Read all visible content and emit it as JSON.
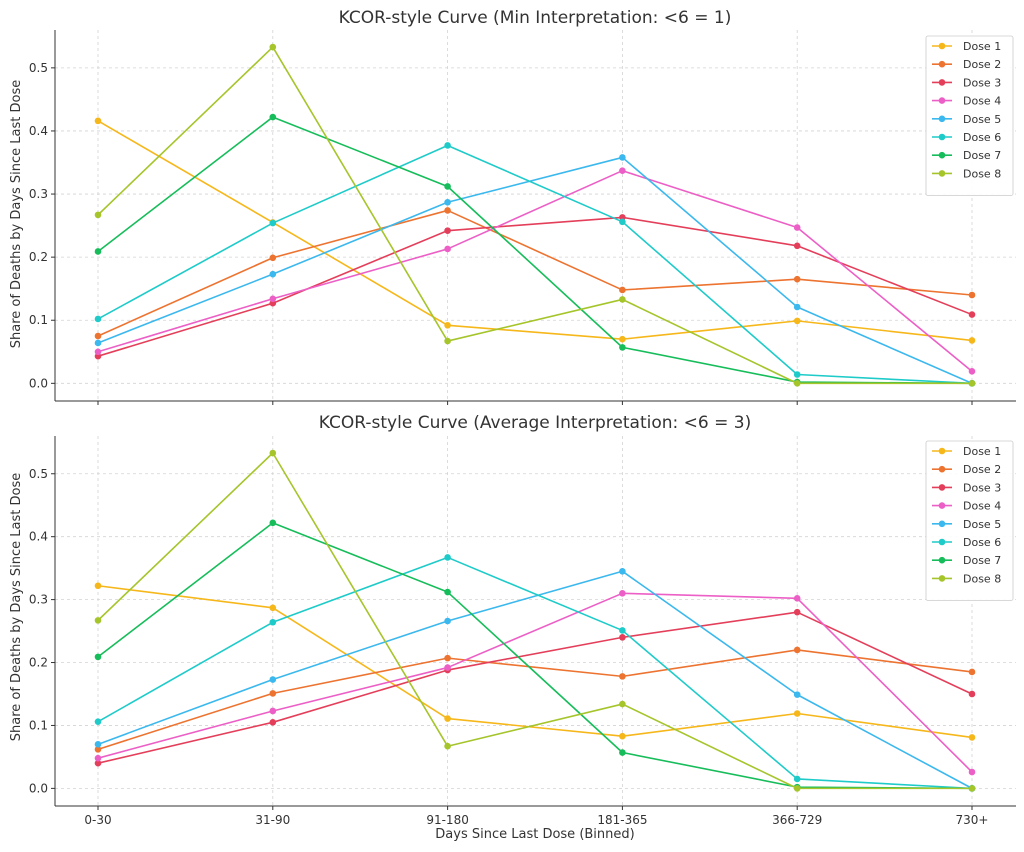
{
  "chart_data": [
    {
      "type": "line",
      "title": "KCOR-style Curve (Min Interpretation: <6 = 1)",
      "xlabel": "",
      "ylabel": "Share of Deaths by Days Since Last Dose",
      "categories": [
        "0-30",
        "31-90",
        "91-180",
        "181-365",
        "366-729",
        "730+"
      ],
      "ylim": [
        -0.028,
        0.56
      ],
      "yticks": [
        0.0,
        0.1,
        0.2,
        0.3,
        0.4,
        0.5
      ],
      "ytick_labels": [
        "0.0",
        "0.1",
        "0.2",
        "0.3",
        "0.4",
        "0.5"
      ],
      "grid": true,
      "legend_position": "top-right",
      "series": [
        {
          "name": "Dose 1",
          "color": "#f6b71a",
          "values": [
            0.416,
            0.255,
            0.092,
            0.07,
            0.099,
            0.068
          ]
        },
        {
          "name": "Dose 2",
          "color": "#ed7330",
          "values": [
            0.075,
            0.199,
            0.274,
            0.148,
            0.165,
            0.14
          ]
        },
        {
          "name": "Dose 3",
          "color": "#e43f5a",
          "values": [
            0.043,
            0.127,
            0.242,
            0.263,
            0.218,
            0.109
          ]
        },
        {
          "name": "Dose 4",
          "color": "#ec5fc6",
          "values": [
            0.05,
            0.134,
            0.213,
            0.337,
            0.247,
            0.019
          ]
        },
        {
          "name": "Dose 5",
          "color": "#3bb8ed",
          "values": [
            0.064,
            0.173,
            0.287,
            0.358,
            0.121,
            0.0
          ]
        },
        {
          "name": "Dose 6",
          "color": "#1ecbc9",
          "values": [
            0.102,
            0.254,
            0.377,
            0.256,
            0.014,
            0.0
          ]
        },
        {
          "name": "Dose 7",
          "color": "#16bd5a",
          "values": [
            0.209,
            0.422,
            0.312,
            0.057,
            0.002,
            0.0
          ]
        },
        {
          "name": "Dose 8",
          "color": "#a5c52b",
          "values": [
            0.267,
            0.533,
            0.067,
            0.133,
            0.0,
            0.0
          ]
        }
      ]
    },
    {
      "type": "line",
      "title": "KCOR-style Curve (Average Interpretation: <6 = 3)",
      "xlabel": "Days Since Last Dose (Binned)",
      "ylabel": "Share of Deaths by Days Since Last Dose",
      "categories": [
        "0-30",
        "31-90",
        "91-180",
        "181-365",
        "366-729",
        "730+"
      ],
      "ylim": [
        -0.028,
        0.56
      ],
      "yticks": [
        0.0,
        0.1,
        0.2,
        0.3,
        0.4,
        0.5
      ],
      "ytick_labels": [
        "0.0",
        "0.1",
        "0.2",
        "0.3",
        "0.4",
        "0.5"
      ],
      "grid": true,
      "legend_position": "top-right",
      "series": [
        {
          "name": "Dose 1",
          "color": "#f6b71a",
          "values": [
            0.322,
            0.287,
            0.111,
            0.083,
            0.119,
            0.081
          ]
        },
        {
          "name": "Dose 2",
          "color": "#ed7330",
          "values": [
            0.062,
            0.151,
            0.207,
            0.178,
            0.22,
            0.185
          ]
        },
        {
          "name": "Dose 3",
          "color": "#e43f5a",
          "values": [
            0.04,
            0.105,
            0.188,
            0.24,
            0.28,
            0.15
          ]
        },
        {
          "name": "Dose 4",
          "color": "#ec5fc6",
          "values": [
            0.048,
            0.123,
            0.192,
            0.31,
            0.302,
            0.026
          ]
        },
        {
          "name": "Dose 5",
          "color": "#3bb8ed",
          "values": [
            0.07,
            0.173,
            0.266,
            0.345,
            0.149,
            0.0
          ]
        },
        {
          "name": "Dose 6",
          "color": "#1ecbc9",
          "values": [
            0.106,
            0.264,
            0.367,
            0.251,
            0.015,
            0.0
          ]
        },
        {
          "name": "Dose 7",
          "color": "#16bd5a",
          "values": [
            0.209,
            0.422,
            0.312,
            0.057,
            0.002,
            0.0
          ]
        },
        {
          "name": "Dose 8",
          "color": "#a5c52b",
          "values": [
            0.267,
            0.533,
            0.067,
            0.134,
            0.0,
            0.0
          ]
        }
      ]
    }
  ]
}
